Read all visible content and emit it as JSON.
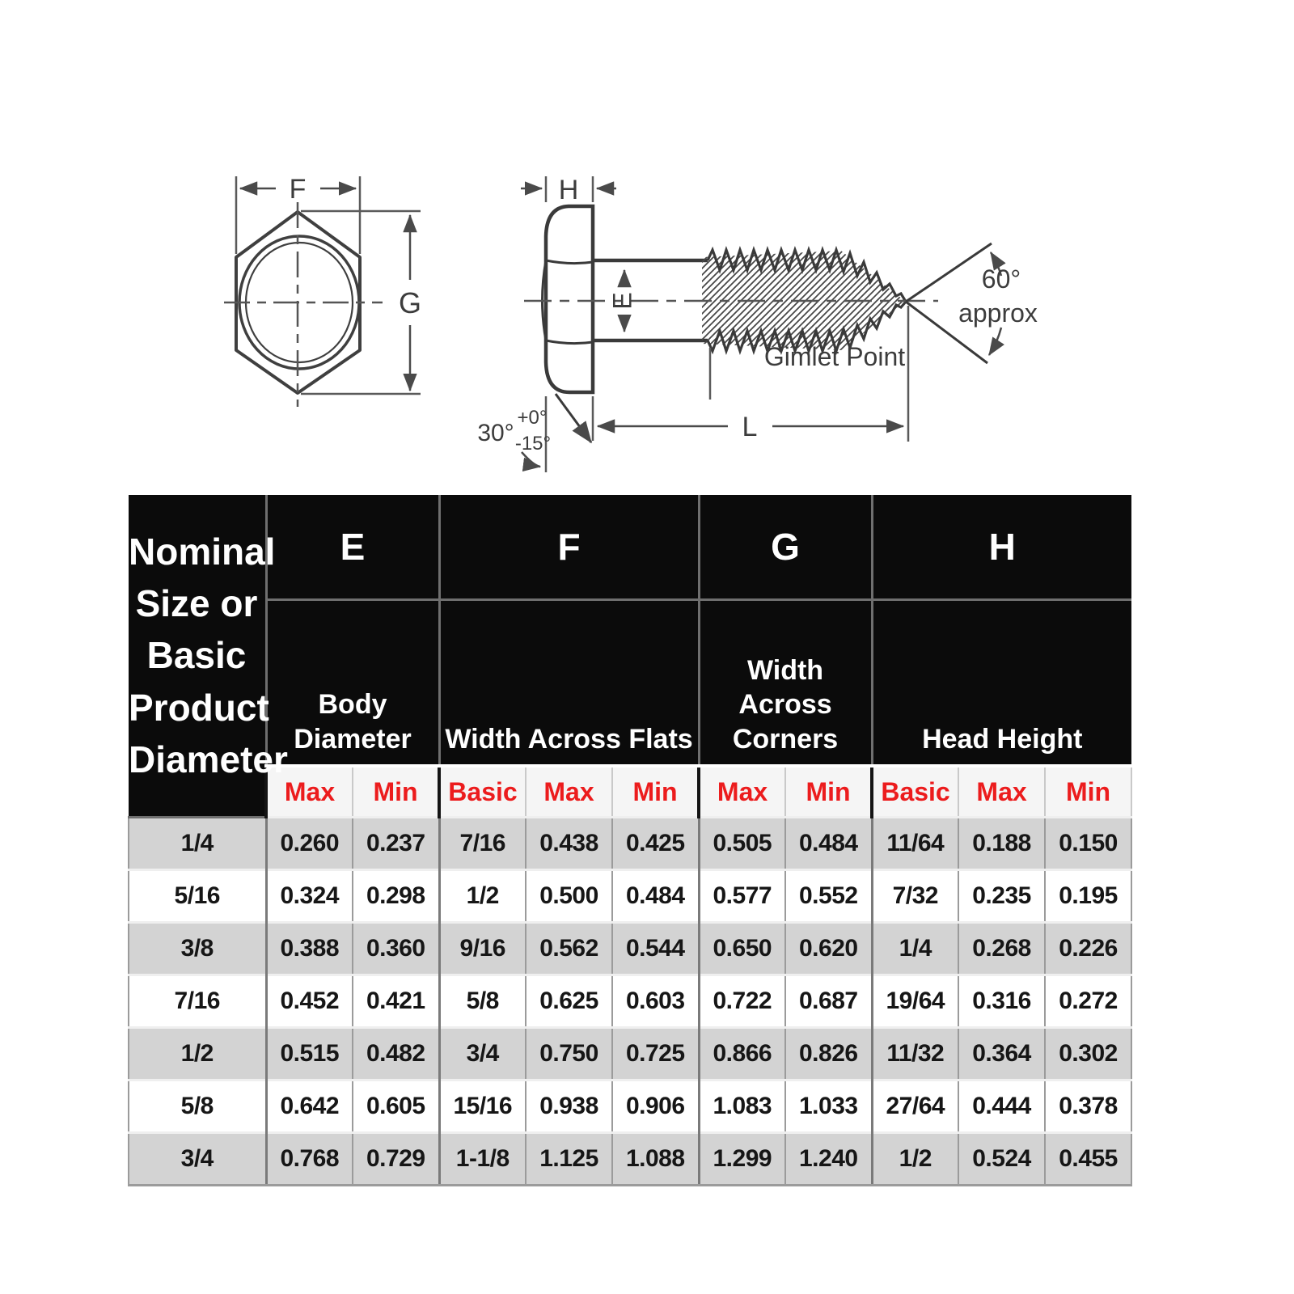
{
  "diagram": {
    "front_view": {
      "width_across_flats_label": "F",
      "width_across_corners_label": "G"
    },
    "side_view": {
      "head_height_label": "H",
      "body_diameter_label": "E",
      "length_label": "L",
      "point_angle": "60°",
      "point_angle_note": "approx",
      "point_name": "Gimlet Point",
      "head_chamfer_angle": "30°",
      "head_chamfer_tol_plus": "+0°",
      "head_chamfer_tol_minus": "-15°"
    }
  },
  "table": {
    "corner_header": "Nominal Size or Basic Product Diameter",
    "groups": [
      {
        "letter": "E",
        "name": "Body Diameter"
      },
      {
        "letter": "F",
        "name": "Width Across Flats"
      },
      {
        "letter": "G",
        "name": "Width Across Corners"
      },
      {
        "letter": "H",
        "name": "Head Height"
      }
    ],
    "subheaders": [
      "Max",
      "Min",
      "Basic",
      "Max",
      "Min",
      "Max",
      "Min",
      "Basic",
      "Max",
      "Min"
    ],
    "group_start_columns": [
      1,
      3,
      6,
      8
    ],
    "rows": [
      [
        "1/4",
        "0.260",
        "0.237",
        "7/16",
        "0.438",
        "0.425",
        "0.505",
        "0.484",
        "11/64",
        "0.188",
        "0.150"
      ],
      [
        "5/16",
        "0.324",
        "0.298",
        "1/2",
        "0.500",
        "0.484",
        "0.577",
        "0.552",
        "7/32",
        "0.235",
        "0.195"
      ],
      [
        "3/8",
        "0.388",
        "0.360",
        "9/16",
        "0.562",
        "0.544",
        "0.650",
        "0.620",
        "1/4",
        "0.268",
        "0.226"
      ],
      [
        "7/16",
        "0.452",
        "0.421",
        "5/8",
        "0.625",
        "0.603",
        "0.722",
        "0.687",
        "19/64",
        "0.316",
        "0.272"
      ],
      [
        "1/2",
        "0.515",
        "0.482",
        "3/4",
        "0.750",
        "0.725",
        "0.866",
        "0.826",
        "11/32",
        "0.364",
        "0.302"
      ],
      [
        "5/8",
        "0.642",
        "0.605",
        "15/16",
        "0.938",
        "0.906",
        "1.083",
        "1.033",
        "27/64",
        "0.444",
        "0.378"
      ],
      [
        "3/4",
        "0.768",
        "0.729",
        "1-1/8",
        "1.125",
        "1.088",
        "1.299",
        "1.240",
        "1/2",
        "0.524",
        "0.455"
      ]
    ],
    "colors": {
      "header_bg": "#0b0b0b",
      "header_text": "#ffffff",
      "subheader_text": "#ec1c1d",
      "stripe_gray": "#d3d3d3",
      "row_white": "#ffffff"
    }
  }
}
